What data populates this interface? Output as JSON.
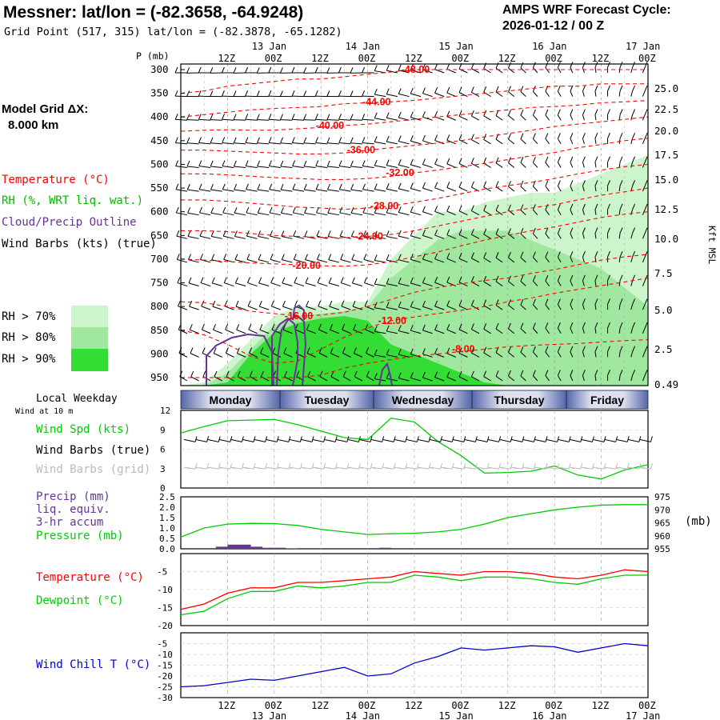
{
  "header": {
    "title": "Messner:  lat/lon = (-82.3658, -64.9248)",
    "grid_point": "Grid Point (517, 315) lat/lon = (-82.3878, -65.1282)",
    "cycle_line1": "AMPS WRF Forecast Cycle:",
    "cycle_line2": "2026-01-12 / 00  Z"
  },
  "model_grid": {
    "label": "Model Grid ΔX:",
    "value": "8.000 km"
  },
  "colors": {
    "temperature": "#ff0000",
    "rh": "#00bb00",
    "cloud": "#663399",
    "pressure": "#00cc00",
    "precip": "#663399",
    "dewpoint": "#00cc00",
    "windchill": "#0000cc",
    "grid_barbs": "#bbbbbb",
    "rh70": "#ccf5cc",
    "rh80": "#a0e8a0",
    "rh90": "#33dd33"
  },
  "legend": {
    "temperature": "Temperature (°C)",
    "rh": "RH (%, WRT liq. wat.)",
    "cloud": "Cloud/Precip Outline",
    "wind": "Wind Barbs (kts) (true)",
    "rh70": "RH > 70%",
    "rh80": "RH > 80%",
    "rh90": "RH > 90%"
  },
  "axes": {
    "p_label": "P (mb)",
    "kft_label": "Kft MSL",
    "top_hours": [
      "12Z",
      "00Z",
      "12Z",
      "00Z",
      "12Z",
      "00Z",
      "12Z",
      "00Z",
      "12Z",
      "00Z"
    ],
    "top_dates": [
      "13 Jan",
      "14 Jan",
      "15 Jan",
      "16 Jan",
      "17 Jan"
    ],
    "bottom_hours": [
      "12Z",
      "00Z",
      "12Z",
      "00Z",
      "12Z",
      "00Z",
      "12Z",
      "00Z",
      "12Z",
      "00Z"
    ],
    "bottom_dates": [
      "13 Jan",
      "14 Jan",
      "15 Jan",
      "16 Jan",
      "17 Jan"
    ]
  },
  "weekday_bar": {
    "label": "Local Weekday",
    "days": [
      "Monday",
      "Tuesday",
      "Wednesday",
      "Thursday",
      "Friday"
    ]
  },
  "wind_panel": {
    "note": "Wind at 10 m",
    "speed_label": "Wind Spd (kts)",
    "barbs_true_label": "Wind Barbs (true)",
    "barbs_grid_label": "Wind Barbs (grid)"
  },
  "precip_panel": {
    "precip_line1": "Precip (mm)",
    "precip_line2": "liq. equiv.",
    "precip_line3": "3-hr accum",
    "pressure_label": "Pressure (mb)",
    "mb_unit": "(mb)"
  },
  "temp_panel": {
    "temp_label": "Temperature (°C)",
    "dew_label": "Dewpoint (°C)"
  },
  "chill_panel": {
    "label": "Wind Chill T (°C)"
  },
  "chart_data": [
    {
      "type": "heatmap",
      "name": "time-height cross section",
      "y_axis_pressure_mb": [
        300,
        350,
        400,
        450,
        500,
        550,
        600,
        650,
        700,
        750,
        800,
        850,
        900,
        950
      ],
      "y_axis_kft": [
        "25.0",
        "22.5",
        "20.0",
        "17.5",
        "15.0",
        "12.5",
        "10.0",
        "7.5",
        "5.0",
        "2.5",
        "0.49"
      ],
      "temperature_contours_c": [
        "-48.00",
        "-44.00",
        "-40.00",
        "-36.00",
        "-32.00",
        "-28.00",
        "-24.00",
        "-20.00",
        "-16.00",
        "-12.00",
        "-8.00"
      ],
      "x_hours": [
        0,
        6,
        12,
        18,
        24,
        30,
        36,
        42,
        48,
        54,
        60,
        66,
        72,
        78,
        84,
        90,
        96,
        102,
        108,
        114,
        120
      ],
      "temperature_isotherms": [
        {
          "label": "-48.00",
          "p": [
            350,
            345,
            335,
            330,
            325,
            320,
            320,
            315,
            310,
            305,
            300,
            300,
            300,
            300,
            300,
            300,
            300,
            300,
            300,
            300,
            300
          ]
        },
        {
          "label": "-44.00",
          "p": [
            400,
            395,
            390,
            385,
            382,
            380,
            378,
            372,
            370,
            368,
            365,
            360,
            355,
            350,
            345,
            340,
            335,
            335,
            330,
            330,
            330
          ]
        },
        {
          "label": "-40.00",
          "p": [
            430,
            428,
            427,
            428,
            428,
            425,
            422,
            418,
            415,
            410,
            405,
            400,
            395,
            390,
            385,
            380,
            378,
            375,
            370,
            368,
            365
          ]
        },
        {
          "label": "-36.00",
          "p": [
            470,
            470,
            472,
            474,
            476,
            478,
            478,
            476,
            470,
            465,
            460,
            455,
            450,
            442,
            435,
            428,
            420,
            415,
            410,
            405,
            400
          ]
        },
        {
          "label": "-32.00",
          "p": [
            520,
            520,
            522,
            525,
            528,
            530,
            532,
            532,
            530,
            525,
            518,
            512,
            505,
            498,
            490,
            482,
            475,
            465,
            458,
            450,
            445
          ]
        },
        {
          "label": "-28.00",
          "p": [
            575,
            575,
            578,
            582,
            586,
            590,
            592,
            595,
            592,
            588,
            580,
            572,
            562,
            552,
            545,
            538,
            530,
            520,
            512,
            505,
            500
          ]
        },
        {
          "label": "-24.00",
          "p": [
            640,
            640,
            642,
            646,
            650,
            652,
            654,
            655,
            652,
            648,
            640,
            630,
            620,
            610,
            600,
            592,
            585,
            575,
            565,
            558,
            550
          ]
        },
        {
          "label": "-20.00",
          "p": [
            700,
            702,
            705,
            708,
            710,
            712,
            714,
            715,
            712,
            705,
            695,
            685,
            672,
            660,
            650,
            640,
            632,
            622,
            612,
            605,
            600
          ]
        },
        {
          "label": "-16.00",
          "p": [
            790,
            792,
            800,
            810,
            815,
            820,
            818,
            812,
            800,
            785,
            770,
            760,
            752,
            745,
            740,
            730,
            722,
            712,
            702,
            695,
            690
          ]
        },
        {
          "label": "-12.00",
          "p": [
            850,
            860,
            880,
            905,
            920,
            915,
            890,
            865,
            845,
            830,
            822,
            815,
            808,
            800,
            790,
            782,
            772,
            764,
            756,
            748,
            740
          ]
        },
        {
          "label": "-8.00",
          "p": [
            950,
            950,
            950,
            950,
            950,
            950,
            945,
            930,
            920,
            912,
            905,
            900,
            895,
            890,
            885,
            882,
            880,
            878,
            875,
            872,
            870
          ]
        }
      ],
      "rh_gt70_top_p": [
        980,
        960,
        920,
        870,
        820,
        800,
        800,
        790,
        790,
        700,
        650,
        600,
        600,
        580,
        570,
        560,
        560,
        540,
        520,
        500,
        480
      ],
      "rh_gt80_top_p": [
        990,
        980,
        940,
        890,
        840,
        820,
        815,
        810,
        800,
        740,
        700,
        660,
        640,
        640,
        640,
        660,
        680,
        700,
        720,
        760,
        800
      ],
      "rh_gt90_top_p": [
        1000,
        990,
        960,
        900,
        855,
        835,
        825,
        820,
        830,
        880,
        900,
        920,
        940,
        960,
        980,
        980,
        990,
        990,
        990,
        990,
        990
      ]
    },
    {
      "type": "line",
      "name": "wind speed 10 m",
      "ylabel": "kts",
      "ylim": [
        0,
        12
      ],
      "yticks": [
        "12",
        "9",
        "6",
        "3",
        "0"
      ],
      "x_hours": [
        0,
        6,
        12,
        18,
        24,
        30,
        36,
        42,
        48,
        54,
        60,
        66,
        72,
        78,
        84,
        90,
        96,
        102,
        108,
        114,
        120
      ],
      "series": [
        {
          "name": "Wind Spd (kts)",
          "values": [
            8.5,
            9.5,
            10.4,
            10.5,
            10.6,
            9.8,
            8.8,
            7.8,
            7.5,
            10.8,
            10.2,
            7.2,
            5.0,
            2.3,
            2.4,
            2.6,
            3.4,
            2.0,
            1.4,
            2.8,
            3.6
          ]
        }
      ]
    },
    {
      "type": "bar",
      "name": "precipitation 3-hr accum",
      "ylabel": "mm",
      "ylim": [
        0,
        2.5
      ],
      "yticks": [
        "2.5",
        "2.0",
        "1.5",
        "1.0",
        "0.5",
        "0.0"
      ],
      "x_hours": [
        9,
        12,
        15,
        18,
        21,
        24,
        27,
        30,
        33,
        36,
        39,
        42,
        45,
        48,
        51,
        54,
        57,
        60
      ],
      "values": [
        0.1,
        0.2,
        0.2,
        0.1,
        0.05,
        0.05,
        0.02,
        0.0,
        0.0,
        0.0,
        0.0,
        0.0,
        0.0,
        0.0,
        0.05,
        0.0,
        0.0,
        0.0
      ]
    },
    {
      "type": "line",
      "name": "surface pressure",
      "ylabel": "mb",
      "ylim": [
        955,
        975
      ],
      "yticks": [
        "975",
        "970",
        "965",
        "960",
        "955"
      ],
      "x_hours": [
        0,
        6,
        12,
        18,
        24,
        30,
        36,
        42,
        48,
        54,
        60,
        66,
        72,
        78,
        84,
        90,
        96,
        102,
        108,
        114,
        120
      ],
      "series": [
        {
          "name": "Pressure (mb)",
          "values": [
            959.5,
            963,
            964.5,
            964.8,
            964.7,
            964,
            962.5,
            961.5,
            960.5,
            960.8,
            961,
            961.5,
            962.5,
            964.5,
            967,
            968.5,
            970,
            971,
            971.8,
            972,
            972
          ]
        }
      ]
    },
    {
      "type": "line",
      "name": "temperature and dewpoint",
      "ylabel": "°C",
      "ylim": [
        -20,
        0
      ],
      "yticks": [
        "-5",
        "-10",
        "-15",
        "-20"
      ],
      "x_hours": [
        0,
        6,
        12,
        18,
        24,
        30,
        36,
        42,
        48,
        54,
        60,
        66,
        72,
        78,
        84,
        90,
        96,
        102,
        108,
        114,
        120
      ],
      "series": [
        {
          "name": "Temperature (°C)",
          "values": [
            -15.5,
            -14,
            -11,
            -9.5,
            -9.5,
            -8,
            -8,
            -7.5,
            -7,
            -6.5,
            -5,
            -5.5,
            -6,
            -5,
            -5,
            -5.5,
            -6.5,
            -7,
            -6,
            -4.5,
            -5
          ]
        },
        {
          "name": "Dewpoint (°C)",
          "values": [
            -17,
            -16,
            -12.5,
            -10.5,
            -10.5,
            -9,
            -9.5,
            -9,
            -8,
            -8,
            -6,
            -6.5,
            -7.5,
            -6.5,
            -6.5,
            -7,
            -8,
            -8.5,
            -7,
            -6,
            -6
          ]
        }
      ]
    },
    {
      "type": "line",
      "name": "wind chill",
      "ylabel": "°C",
      "ylim": [
        -30,
        0
      ],
      "yticks": [
        "-5",
        "-10",
        "-15",
        "-20",
        "-25",
        "-30"
      ],
      "x_hours": [
        0,
        6,
        12,
        18,
        24,
        30,
        36,
        42,
        48,
        54,
        60,
        66,
        72,
        78,
        84,
        90,
        96,
        102,
        108,
        114,
        120
      ],
      "series": [
        {
          "name": "Wind Chill T (°C)",
          "values": [
            -25,
            -24.5,
            -23,
            -21.5,
            -22,
            -20,
            -18,
            -16,
            -20,
            -19,
            -14,
            -11,
            -7,
            -8,
            -7,
            -6,
            -6.5,
            -9,
            -7,
            -5,
            -6
          ]
        }
      ]
    }
  ]
}
